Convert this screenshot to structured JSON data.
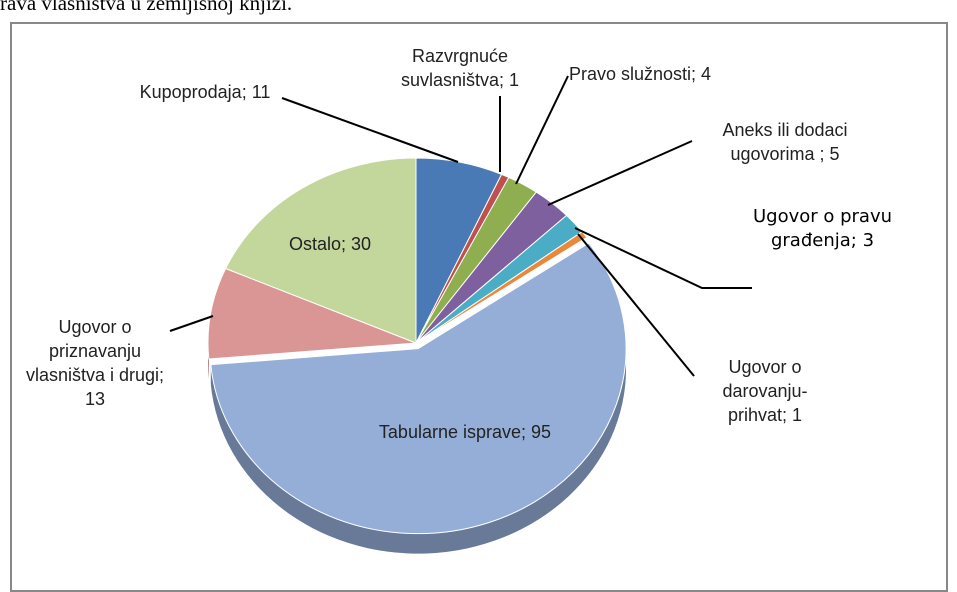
{
  "header_text": "rava vlasništva u zemljišnoj knjizi.",
  "chart_data": {
    "type": "pie",
    "categories": [
      "Kupoprodaja",
      "Razvrgnuće suvlasništva",
      "Pravo služnosti",
      "Aneks ili dodaci ugovorima ",
      "Ugovor o pravu građenja",
      "Ugovor o darovanju-prihvat",
      "Tabularne isprave",
      "Ugovor o priznavanju vlasništva i drugi",
      "Ostalo"
    ],
    "values": [
      11,
      1,
      4,
      5,
      3,
      1,
      95,
      13,
      30
    ],
    "label_separator": ";",
    "colors": [
      "#4a7ab5",
      "#c0504d",
      "#8fae4f",
      "#7e609e",
      "#4bacc6",
      "#e8883a",
      "#95aed8",
      "#d99694",
      "#c3d69b"
    ]
  }
}
